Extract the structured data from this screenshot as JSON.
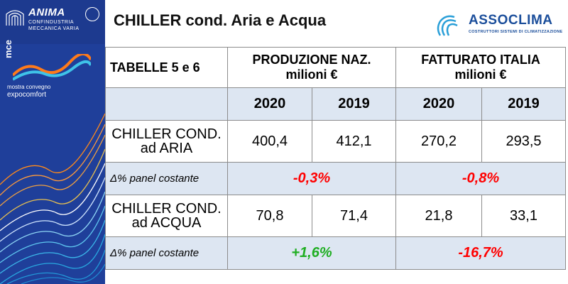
{
  "header": {
    "title": "CHILLER cond. Aria e Acqua"
  },
  "sidebar": {
    "anima_name": "ANIMA",
    "anima_sub1": "CONFINDUSTRIA",
    "anima_sub2": "MECCANICA VARIA",
    "mce_label": "mce",
    "mce_sub1": "mostra convegno",
    "mce_sub2": "expocomfort"
  },
  "assoclima": {
    "name": "ASSOCLIMA",
    "subtitle": "COSTRUTTORI SISTEMI DI CLIMATIZZAZIONE"
  },
  "table": {
    "label": "TABELLE 5 e 6",
    "col_prod_line1": "PRODUZIONE NAZ.",
    "col_prod_line2": "milioni €",
    "col_fatt_line1": "FATTURATO ITALIA",
    "col_fatt_line2": "milioni €",
    "years": [
      "2020",
      "2019",
      "2020",
      "2019"
    ],
    "rows": [
      {
        "label_line1": "CHILLER COND.",
        "label_line2": "ad ARIA",
        "values": [
          "400,4",
          "412,1",
          "270,2",
          "293,5"
        ],
        "delta_label": "Δ% panel costante",
        "delta_prod": "-0,3%",
        "delta_fatt": "-0,8%"
      },
      {
        "label_line1": "CHILLER COND.",
        "label_line2": "ad ACQUA",
        "values": [
          "70,8",
          "71,4",
          "21,8",
          "33,1"
        ],
        "delta_label": "Δ% panel costante",
        "delta_prod": "+1,6%",
        "delta_fatt": "-16,7%"
      }
    ]
  },
  "colors": {
    "negative": "#ff0000",
    "positive": "#1fae22",
    "sidebar": "#1f3f9a",
    "shaded_row": "#dde6f2"
  }
}
